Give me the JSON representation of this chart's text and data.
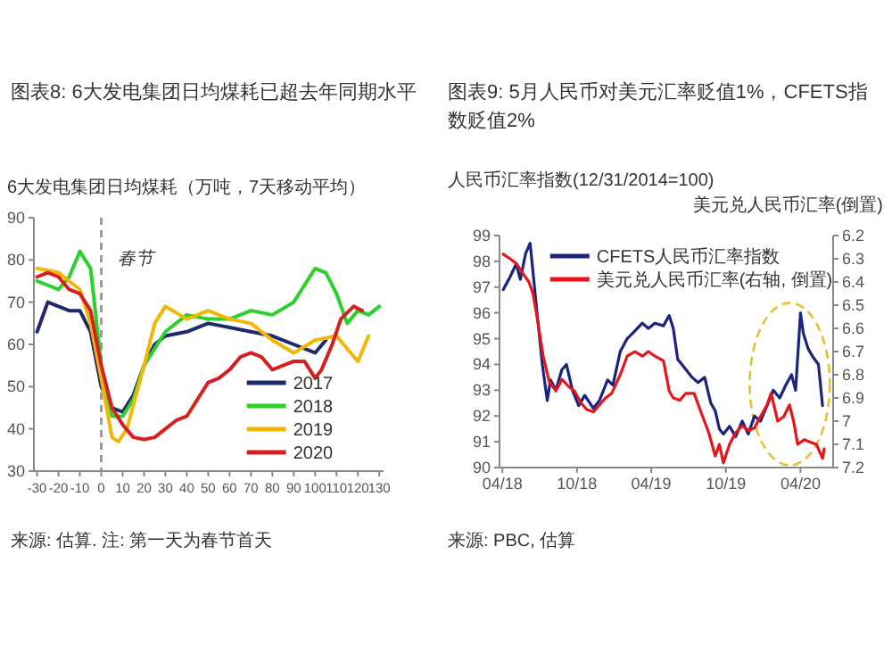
{
  "chart_data": [
    {
      "type": "line",
      "title": "图表8: 6大发电集团日均煤耗已超去年同期水平",
      "ylabel": "6大发电集团日均煤耗（万吨，7天移动平均）",
      "annotations": [
        "来源: 估算. 注: 第一天为春节首天"
      ],
      "xlim": [
        -31.5,
        132
      ],
      "xticks": [
        -30,
        -20,
        -10,
        0,
        10,
        20,
        30,
        40,
        50,
        60,
        70,
        80,
        90,
        100,
        110,
        120,
        130
      ],
      "ylim": [
        30,
        90
      ],
      "yticks": [
        30,
        40,
        50,
        60,
        70,
        80,
        90
      ],
      "ref_lines": [
        {
          "axis": "x",
          "value": 0,
          "label": "春节",
          "line_style": "dashed",
          "color": "#9a9a9a"
        }
      ],
      "legend": "bottom right",
      "series": [
        {
          "name": "2017",
          "color": "#1f2a6e",
          "x": [
            -30,
            -25,
            -20,
            -15,
            -10,
            -5,
            0,
            5,
            10,
            15,
            20,
            25,
            30,
            40,
            50,
            60,
            70,
            80,
            90,
            100,
            105
          ],
          "values": [
            63,
            70,
            69,
            68,
            68,
            63,
            50,
            45,
            44,
            48,
            55,
            60,
            62,
            63,
            65,
            64,
            63,
            62,
            60,
            58,
            61
          ]
        },
        {
          "name": "2018",
          "color": "#2bd12b",
          "x": [
            -30,
            -20,
            -15,
            -10,
            -5,
            0,
            5,
            10,
            15,
            20,
            30,
            40,
            50,
            60,
            70,
            80,
            90,
            100,
            105,
            110,
            115,
            120,
            125,
            130
          ],
          "values": [
            75,
            73,
            76,
            82,
            78,
            55,
            43,
            43,
            47,
            55,
            63,
            67,
            66,
            66,
            68,
            67,
            70,
            78,
            77,
            72,
            65,
            68,
            67,
            69
          ]
        },
        {
          "name": "2019",
          "color": "#f2b705",
          "x": [
            -30,
            -20,
            -10,
            -5,
            0,
            5,
            8,
            12,
            20,
            25,
            30,
            40,
            50,
            60,
            70,
            80,
            90,
            100,
            110,
            115,
            120,
            125
          ],
          "values": [
            78,
            77,
            73,
            65,
            52,
            38,
            37,
            40,
            55,
            65,
            69,
            66,
            68,
            66,
            65,
            61,
            58,
            61,
            62,
            59,
            56,
            62
          ]
        },
        {
          "name": "2020",
          "color": "#d6201f",
          "x": [
            -30,
            -25,
            -20,
            -15,
            -10,
            -5,
            0,
            5,
            10,
            15,
            20,
            25,
            30,
            35,
            40,
            45,
            50,
            55,
            60,
            65,
            70,
            75,
            80,
            90,
            95,
            100,
            103,
            108,
            112,
            118,
            122
          ],
          "values": [
            76,
            77,
            76,
            73,
            72,
            68,
            55,
            45,
            41,
            38,
            37.5,
            38,
            40,
            42,
            43,
            47,
            51,
            52,
            54,
            57,
            58,
            57,
            54,
            56,
            56,
            52,
            54,
            60,
            66,
            69,
            68
          ]
        }
      ]
    },
    {
      "type": "line",
      "title": "图表9: 5月人民币对美元汇率贬值1%，CFETS指数贬值2%",
      "ylabel": "人民币汇率指数(12/31/2014=100)",
      "y2label": "美元兑人民币汇率(倒置)",
      "annotations": [
        "来源: PBC, 估算"
      ],
      "xlim": [
        "2018-03-25",
        "2020-06-20"
      ],
      "xticks": [
        {
          "value": "2018-04-01",
          "label": "04/18"
        },
        {
          "value": "2018-10-01",
          "label": "10/18"
        },
        {
          "value": "2019-04-01",
          "label": "04/19"
        },
        {
          "value": "2019-10-01",
          "label": "10/19"
        },
        {
          "value": "2020-04-01",
          "label": "04/20"
        }
      ],
      "ylim": [
        90,
        99
      ],
      "yticks": [
        90,
        91,
        92,
        93,
        94,
        95,
        96,
        97,
        98,
        99
      ],
      "y2lim": [
        7.2,
        6.2
      ],
      "y2ticks": [
        6.2,
        6.3,
        6.4,
        6.5,
        6.6,
        6.7,
        6.8,
        6.9,
        7.0,
        7.1,
        7.2
      ],
      "legend": "top",
      "series": [
        {
          "name": "CFETS人民币汇率指数",
          "color": "#1a237e",
          "x": [
            "2018-04-03",
            "2018-04-20",
            "2018-05-05",
            "2018-05-15",
            "2018-05-28",
            "2018-06-08",
            "2018-06-15",
            "2018-06-25",
            "2018-07-08",
            "2018-07-20",
            "2018-07-28",
            "2018-08-10",
            "2018-08-25",
            "2018-09-05",
            "2018-09-20",
            "2018-10-05",
            "2018-10-20",
            "2018-11-10",
            "2018-11-25",
            "2018-12-15",
            "2018-12-28",
            "2019-01-15",
            "2019-02-01",
            "2019-02-20",
            "2019-03-10",
            "2019-03-25",
            "2019-04-10",
            "2019-05-01",
            "2019-05-15",
            "2019-05-25",
            "2019-06-05",
            "2019-06-20",
            "2019-07-10",
            "2019-07-25",
            "2019-08-10",
            "2019-08-25",
            "2019-09-05",
            "2019-09-15",
            "2019-09-25",
            "2019-10-10",
            "2019-10-25",
            "2019-11-10",
            "2019-11-25",
            "2019-12-10",
            "2019-12-25",
            "2020-01-10",
            "2020-01-25",
            "2020-02-10",
            "2020-02-25",
            "2020-03-10",
            "2020-03-20",
            "2020-04-01",
            "2020-04-08",
            "2020-04-20",
            "2020-05-01",
            "2020-05-15",
            "2020-05-25"
          ],
          "values": [
            96.9,
            97.4,
            97.9,
            97.3,
            98.3,
            98.7,
            97.6,
            96.0,
            94.0,
            92.6,
            93.4,
            93.0,
            93.8,
            94.0,
            93.0,
            92.4,
            92.8,
            92.3,
            92.6,
            93.4,
            93.2,
            94.5,
            95.0,
            95.3,
            95.6,
            95.4,
            95.6,
            95.5,
            95.9,
            95.4,
            94.2,
            93.9,
            93.5,
            93.3,
            93.5,
            92.5,
            92.2,
            91.5,
            91.3,
            91.6,
            91.2,
            91.8,
            91.3,
            92.0,
            91.8,
            92.4,
            93.0,
            92.7,
            93.2,
            93.6,
            93.0,
            96.0,
            95.2,
            94.6,
            94.3,
            94.0,
            92.4
          ]
        },
        {
          "name": "美元兑人民币汇率(右轴, 倒置)",
          "color": "#e8141a",
          "axis": "y2",
          "x": [
            "2018-04-03",
            "2018-04-20",
            "2018-05-05",
            "2018-05-20",
            "2018-06-05",
            "2018-06-15",
            "2018-06-25",
            "2018-07-10",
            "2018-07-25",
            "2018-08-10",
            "2018-08-25",
            "2018-09-10",
            "2018-09-25",
            "2018-10-10",
            "2018-10-25",
            "2018-11-10",
            "2018-11-25",
            "2018-12-10",
            "2018-12-25",
            "2019-01-15",
            "2019-02-01",
            "2019-02-20",
            "2019-03-10",
            "2019-03-25",
            "2019-04-10",
            "2019-05-01",
            "2019-05-15",
            "2019-05-25",
            "2019-06-10",
            "2019-06-25",
            "2019-07-15",
            "2019-08-05",
            "2019-08-20",
            "2019-09-05",
            "2019-09-15",
            "2019-09-25",
            "2019-10-10",
            "2019-10-25",
            "2019-11-10",
            "2019-11-25",
            "2019-12-10",
            "2019-12-25",
            "2020-01-10",
            "2020-01-20",
            "2020-02-05",
            "2020-02-20",
            "2020-03-05",
            "2020-03-15",
            "2020-03-25",
            "2020-04-10",
            "2020-04-25",
            "2020-05-10",
            "2020-05-25",
            "2020-05-29"
          ],
          "values": [
            6.28,
            6.3,
            6.32,
            6.36,
            6.4,
            6.45,
            6.55,
            6.72,
            6.83,
            6.87,
            6.82,
            6.85,
            6.87,
            6.92,
            6.95,
            6.96,
            6.93,
            6.9,
            6.88,
            6.8,
            6.72,
            6.7,
            6.72,
            6.7,
            6.72,
            6.74,
            6.87,
            6.9,
            6.91,
            6.88,
            6.88,
            6.98,
            7.05,
            7.15,
            7.1,
            7.18,
            7.1,
            7.05,
            7.02,
            7.04,
            7.03,
            6.98,
            6.93,
            6.88,
            7.0,
            6.98,
            6.93,
            7.0,
            7.1,
            7.08,
            7.09,
            7.1,
            7.16,
            7.12
          ]
        }
      ]
    }
  ]
}
